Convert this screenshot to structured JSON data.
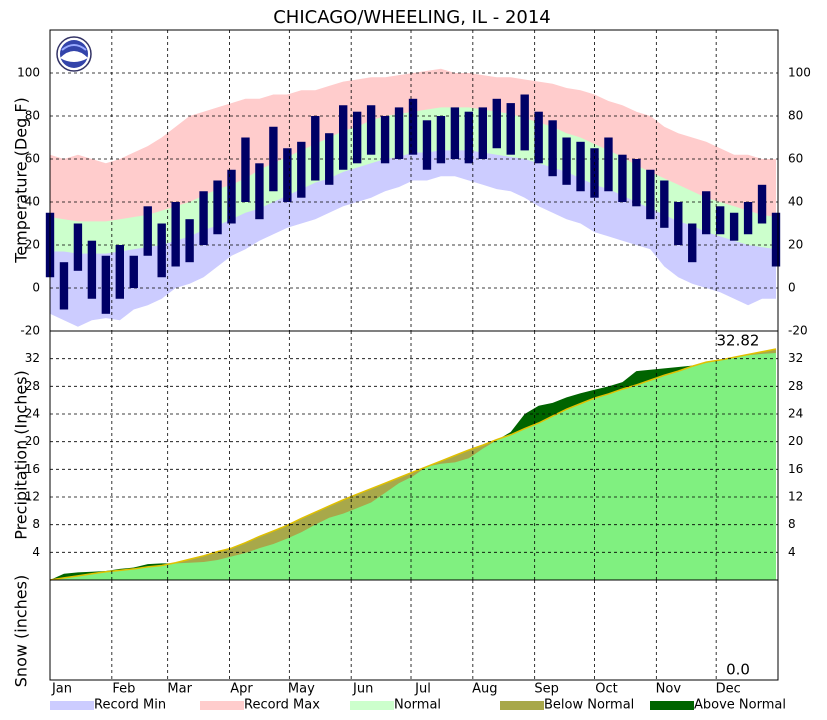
{
  "chart_data": [
    {
      "type": "band",
      "title": "CHICAGO/WHEELING, IL - 2014",
      "ylabel": "Temperature (Deg F)",
      "x": [
        0,
        7,
        14,
        21,
        28,
        35,
        42,
        49,
        56,
        63,
        70,
        77,
        84,
        91,
        98,
        105,
        112,
        119,
        126,
        133,
        140,
        147,
        154,
        161,
        168,
        175,
        182,
        189,
        196,
        203,
        210,
        217,
        224,
        231,
        238,
        245,
        252,
        259,
        266,
        273,
        280,
        287,
        294,
        301,
        308,
        315,
        322,
        329,
        336,
        343,
        350,
        357,
        364
      ],
      "ylim": [
        -20,
        120
      ],
      "yticks": [
        -20,
        0,
        20,
        40,
        60,
        80,
        100
      ],
      "grid": true,
      "record_min": {
        "name": "Record Min",
        "color": "#ccccff",
        "values": [
          -12,
          -15,
          -18,
          -15,
          -14,
          -15,
          -10,
          -8,
          -5,
          0,
          2,
          5,
          10,
          15,
          18,
          22,
          25,
          28,
          30,
          32,
          35,
          38,
          40,
          42,
          45,
          47,
          50,
          50,
          52,
          52,
          50,
          48,
          46,
          45,
          42,
          38,
          35,
          32,
          30,
          26,
          24,
          22,
          20,
          18,
          10,
          5,
          2,
          0,
          -2,
          -5,
          -8,
          -5,
          -5
        ]
      },
      "record_max": {
        "name": "Record Max",
        "color": "#ffcccc",
        "values": [
          62,
          60,
          62,
          60,
          58,
          60,
          63,
          66,
          70,
          75,
          80,
          82,
          84,
          86,
          88,
          88,
          90,
          90,
          92,
          92,
          94,
          96,
          97,
          98,
          98,
          99,
          100,
          101,
          102,
          100,
          100,
          99,
          98,
          98,
          97,
          96,
          95,
          93,
          92,
          90,
          87,
          85,
          82,
          80,
          75,
          72,
          70,
          68,
          65,
          62,
          62,
          60,
          60
        ]
      },
      "normal": {
        "name": "Normal",
        "color": "#ccffcc",
        "high": [
          33,
          32,
          31,
          31,
          31,
          32,
          33,
          34,
          36,
          38,
          40,
          43,
          46,
          48,
          51,
          55,
          58,
          61,
          64,
          67,
          70,
          73,
          75,
          78,
          80,
          81,
          82,
          83,
          84,
          84,
          84,
          83,
          82,
          81,
          79,
          77,
          75,
          72,
          70,
          67,
          64,
          61,
          57,
          54,
          51,
          48,
          45,
          42,
          40,
          38,
          36,
          34,
          33
        ],
        "low": [
          17,
          17,
          16,
          16,
          16,
          17,
          18,
          19,
          20,
          22,
          24,
          27,
          29,
          32,
          35,
          37,
          40,
          43,
          46,
          49,
          51,
          54,
          56,
          58,
          60,
          61,
          63,
          63,
          64,
          64,
          64,
          63,
          62,
          61,
          60,
          58,
          56,
          54,
          51,
          48,
          46,
          43,
          40,
          37,
          34,
          31,
          29,
          26,
          24,
          22,
          20,
          19,
          18
        ]
      },
      "observed": {
        "color": "#000066",
        "high": [
          35,
          12,
          30,
          22,
          15,
          20,
          15,
          38,
          30,
          40,
          32,
          45,
          50,
          55,
          70,
          58,
          75,
          65,
          68,
          80,
          72,
          85,
          82,
          85,
          80,
          84,
          88,
          78,
          80,
          84,
          82,
          84,
          88,
          86,
          90,
          82,
          78,
          70,
          68,
          65,
          70,
          62,
          60,
          55,
          50,
          40,
          30,
          45,
          38,
          35,
          40,
          48,
          35
        ],
        "low": [
          5,
          -10,
          8,
          -5,
          -12,
          -5,
          0,
          15,
          5,
          10,
          12,
          20,
          25,
          30,
          40,
          32,
          45,
          40,
          42,
          50,
          48,
          55,
          58,
          62,
          58,
          60,
          62,
          55,
          58,
          60,
          58,
          60,
          65,
          62,
          64,
          58,
          52,
          48,
          45,
          42,
          45,
          40,
          38,
          32,
          28,
          20,
          12,
          25,
          25,
          22,
          25,
          30,
          10
        ]
      }
    },
    {
      "type": "cumulative",
      "ylabel": "Precipitation (Inches)",
      "x": [
        0,
        7,
        14,
        21,
        28,
        35,
        42,
        49,
        56,
        63,
        70,
        77,
        84,
        91,
        98,
        105,
        112,
        119,
        126,
        133,
        140,
        147,
        154,
        161,
        168,
        175,
        182,
        189,
        196,
        203,
        210,
        217,
        224,
        231,
        238,
        245,
        252,
        259,
        266,
        273,
        280,
        287,
        294,
        301,
        308,
        315,
        322,
        329,
        336,
        343,
        350,
        357,
        364
      ],
      "ylim": [
        0,
        36
      ],
      "yticks": [
        4,
        8,
        12,
        16,
        20,
        24,
        28,
        32
      ],
      "grid": true,
      "observed": {
        "color": "#80f080",
        "values": [
          0,
          0.9,
          1.1,
          1.2,
          1.3,
          1.6,
          1.8,
          2.3,
          2.4,
          2.4,
          2.5,
          2.6,
          2.9,
          3.4,
          3.9,
          4.6,
          5.2,
          6.0,
          6.9,
          8.0,
          9.0,
          9.6,
          10.4,
          11.2,
          12.6,
          14.0,
          15.0,
          16.4,
          16.8,
          17.0,
          17.6,
          19.0,
          20.2,
          21.4,
          24.0,
          25.2,
          25.6,
          26.4,
          27.0,
          27.5,
          28.0,
          28.6,
          30.2,
          30.4,
          30.6,
          30.8,
          31.0,
          31.4,
          31.8,
          32.2,
          32.5,
          32.7,
          32.82
        ]
      },
      "normal": {
        "color": "#e0c000",
        "values": [
          0,
          0.3,
          0.6,
          0.9,
          1.2,
          1.4,
          1.6,
          1.9,
          2.1,
          2.5,
          3.0,
          3.5,
          4.1,
          4.6,
          5.4,
          6.3,
          7.1,
          7.9,
          8.9,
          9.8,
          10.7,
          11.6,
          12.4,
          13.2,
          14.0,
          14.8,
          15.6,
          16.4,
          17.2,
          18.0,
          18.8,
          19.5,
          20.3,
          21.0,
          21.9,
          22.7,
          23.7,
          24.7,
          25.5,
          26.3,
          26.9,
          27.6,
          28.2,
          28.9,
          29.6,
          30.2,
          30.9,
          31.5,
          31.8,
          32.2,
          32.6,
          33.0,
          33.4
        ]
      },
      "below": {
        "name": "Below Normal",
        "color": "#a8a84a"
      },
      "above": {
        "name": "Above Normal",
        "color": "#006400"
      }
    },
    {
      "type": "snow",
      "ylabel": "Snow (inches)",
      "total": {
        "value": 0,
        "label": "0.0"
      },
      "xlim": [
        0,
        365
      ],
      "xticks": [
        {
          "value": 0,
          "label": "Jan"
        },
        {
          "value": 31,
          "label": "Feb"
        },
        {
          "value": 59,
          "label": "Mar"
        },
        {
          "value": 90,
          "label": "Apr"
        },
        {
          "value": 120,
          "label": "May"
        },
        {
          "value": 151,
          "label": "Jun"
        },
        {
          "value": 181,
          "label": "Jul"
        },
        {
          "value": 212,
          "label": "Aug"
        },
        {
          "value": 243,
          "label": "Sep"
        },
        {
          "value": 273,
          "label": "Oct"
        },
        {
          "value": 304,
          "label": "Nov"
        },
        {
          "value": 334,
          "label": "Dec"
        }
      ]
    }
  ]
}
